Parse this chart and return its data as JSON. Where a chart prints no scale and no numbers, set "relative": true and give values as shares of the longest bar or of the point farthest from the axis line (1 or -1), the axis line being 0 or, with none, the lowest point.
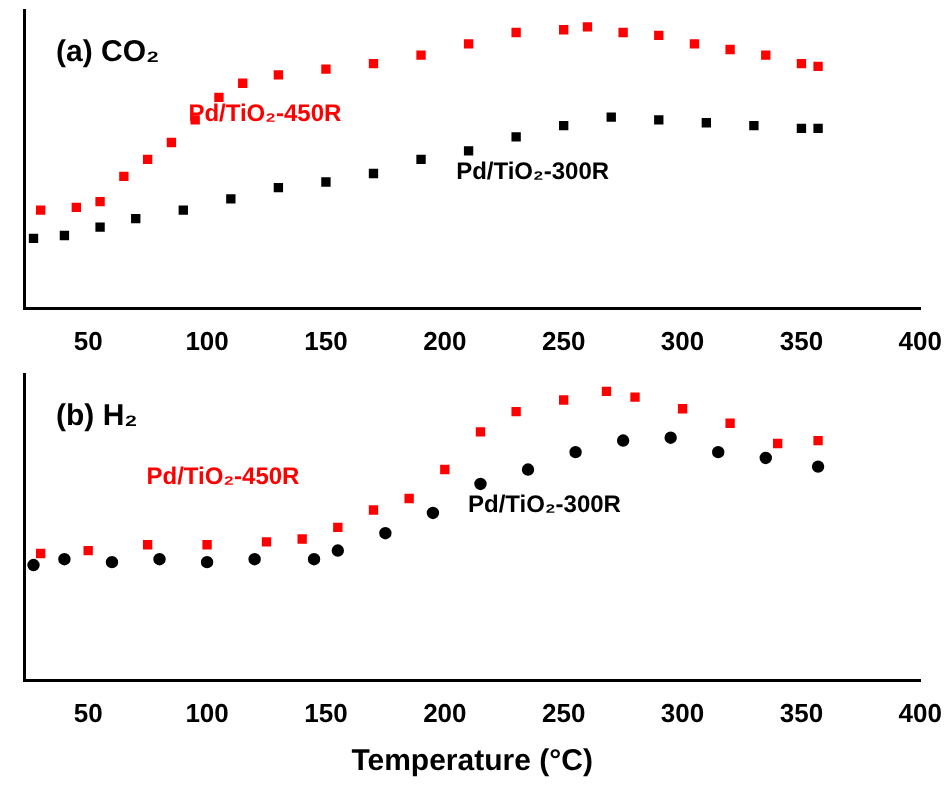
{
  "chart_data": [
    {
      "type": "scatter",
      "title": "(a) CO₂",
      "relative": true,
      "marker": "square",
      "legend": false,
      "grid": false,
      "tick_labels": "x",
      "xlim": [
        23,
        400
      ],
      "xticks": [
        50,
        100,
        150,
        200,
        250,
        300,
        350,
        400
      ],
      "series": [
        {
          "name": "Pd/TiO₂-450R",
          "color": "#ff0000",
          "x": [
            30,
            45,
            55,
            65,
            75,
            85,
            95,
            105,
            115,
            130,
            150,
            170,
            190,
            210,
            230,
            250,
            260,
            275,
            290,
            305,
            320,
            335,
            350,
            357
          ],
          "values": [
            0.35,
            0.36,
            0.38,
            0.47,
            0.53,
            0.59,
            0.67,
            0.75,
            0.8,
            0.83,
            0.85,
            0.87,
            0.9,
            0.94,
            0.98,
            0.99,
            1,
            0.98,
            0.97,
            0.94,
            0.92,
            0.9,
            0.87,
            0.86
          ]
        },
        {
          "name": "Pd/TiO₂-300R",
          "color": "#000000",
          "x": [
            27,
            40,
            55,
            70,
            90,
            110,
            130,
            150,
            170,
            190,
            210,
            230,
            250,
            270,
            290,
            310,
            330,
            350,
            357
          ],
          "values": [
            0.25,
            0.26,
            0.29,
            0.32,
            0.35,
            0.39,
            0.43,
            0.45,
            0.48,
            0.53,
            0.56,
            0.61,
            0.65,
            0.68,
            0.67,
            0.66,
            0.65,
            0.64,
            0.64
          ]
        }
      ]
    },
    {
      "type": "scatter",
      "title": "(b) H₂",
      "xlabel": "Temperature (°C)",
      "relative": true,
      "legend": false,
      "grid": false,
      "tick_labels": "x",
      "xlim": [
        23,
        400
      ],
      "xticks": [
        50,
        100,
        150,
        200,
        250,
        300,
        350,
        400
      ],
      "series": [
        {
          "name": "Pd/TiO₂-450R",
          "color": "#ff0000",
          "marker": "square",
          "x": [
            30,
            50,
            75,
            100,
            125,
            140,
            155,
            170,
            185,
            200,
            215,
            230,
            250,
            268,
            280,
            300,
            320,
            340,
            357
          ],
          "values": [
            0.44,
            0.45,
            0.47,
            0.47,
            0.48,
            0.49,
            0.53,
            0.59,
            0.63,
            0.73,
            0.86,
            0.93,
            0.97,
            1,
            0.98,
            0.94,
            0.89,
            0.82,
            0.83
          ]
        },
        {
          "name": "Pd/TiO₂-300R",
          "color": "#000000",
          "marker": "circle",
          "x": [
            27,
            40,
            60,
            80,
            100,
            120,
            145,
            155,
            175,
            195,
            215,
            235,
            255,
            275,
            295,
            315,
            335,
            357
          ],
          "values": [
            0.4,
            0.42,
            0.41,
            0.42,
            0.41,
            0.42,
            0.42,
            0.45,
            0.51,
            0.58,
            0.68,
            0.73,
            0.79,
            0.83,
            0.84,
            0.79,
            0.77,
            0.74
          ]
        }
      ]
    }
  ]
}
